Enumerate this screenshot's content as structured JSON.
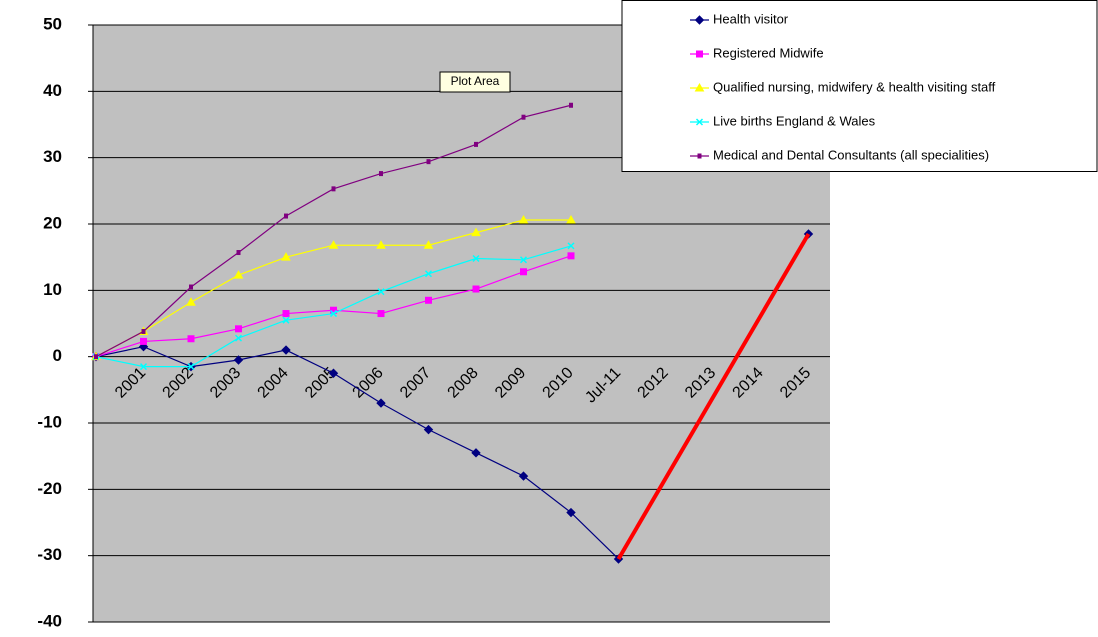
{
  "chart_data": {
    "type": "line",
    "categories": [
      null,
      "2001",
      "2002",
      "2003",
      "2004",
      "2005",
      "2006",
      "2007",
      "2008",
      "2009",
      "2010",
      "Jul-11",
      "2012",
      "2013",
      "2014",
      "2015"
    ],
    "series": [
      {
        "name": "Health visitor",
        "color": "#000080",
        "marker": "diamond",
        "values": [
          0,
          1.5,
          -1.5,
          -0.5,
          1,
          -2.5,
          -7,
          -11,
          -14.5,
          -18,
          -23.5,
          -30.5,
          null,
          null,
          null,
          18.5
        ]
      },
      {
        "name": "Registered Midwife",
        "color": "#ff00ff",
        "marker": "square",
        "values": [
          0,
          2.3,
          2.7,
          4.2,
          6.5,
          7,
          6.5,
          8.5,
          10.2,
          12.8,
          15.2,
          null,
          null,
          null,
          null,
          null
        ]
      },
      {
        "name": "Qualified nursing, midwifery & health visiting staff",
        "color": "#ffff00",
        "marker": "triangle",
        "values": [
          0,
          3.8,
          8.2,
          12.3,
          15,
          16.8,
          16.8,
          16.8,
          18.7,
          20.6,
          20.6,
          null,
          null,
          null,
          null,
          null
        ]
      },
      {
        "name": "Live births England & Wales",
        "color": "#00ffff",
        "marker": "cross",
        "values": [
          0,
          -1.5,
          -1.5,
          2.8,
          5.5,
          6.5,
          9.8,
          12.5,
          14.8,
          14.6,
          16.7,
          null,
          null,
          null,
          null,
          null
        ]
      },
      {
        "name": "Medical and Dental Consultants (all specialities)",
        "color": "#800080",
        "marker": "bar",
        "values": [
          0,
          3.8,
          10.5,
          15.7,
          21.2,
          25.3,
          27.6,
          29.4,
          32,
          36.1,
          37.9,
          null,
          null,
          null,
          null,
          null
        ]
      },
      {
        "color": "#ff0000",
        "connect_gaps": true,
        "width": 4,
        "values": [
          null,
          null,
          null,
          null,
          null,
          null,
          null,
          null,
          null,
          null,
          null,
          -30.5,
          null,
          null,
          null,
          18.5
        ]
      }
    ],
    "ylim": [
      -40,
      50
    ],
    "yticks": [
      -40,
      -30,
      -20,
      -10,
      0,
      10,
      20,
      30,
      40,
      50
    ],
    "grid": true,
    "tooltip": "Plot Area",
    "legend": "top-right"
  }
}
